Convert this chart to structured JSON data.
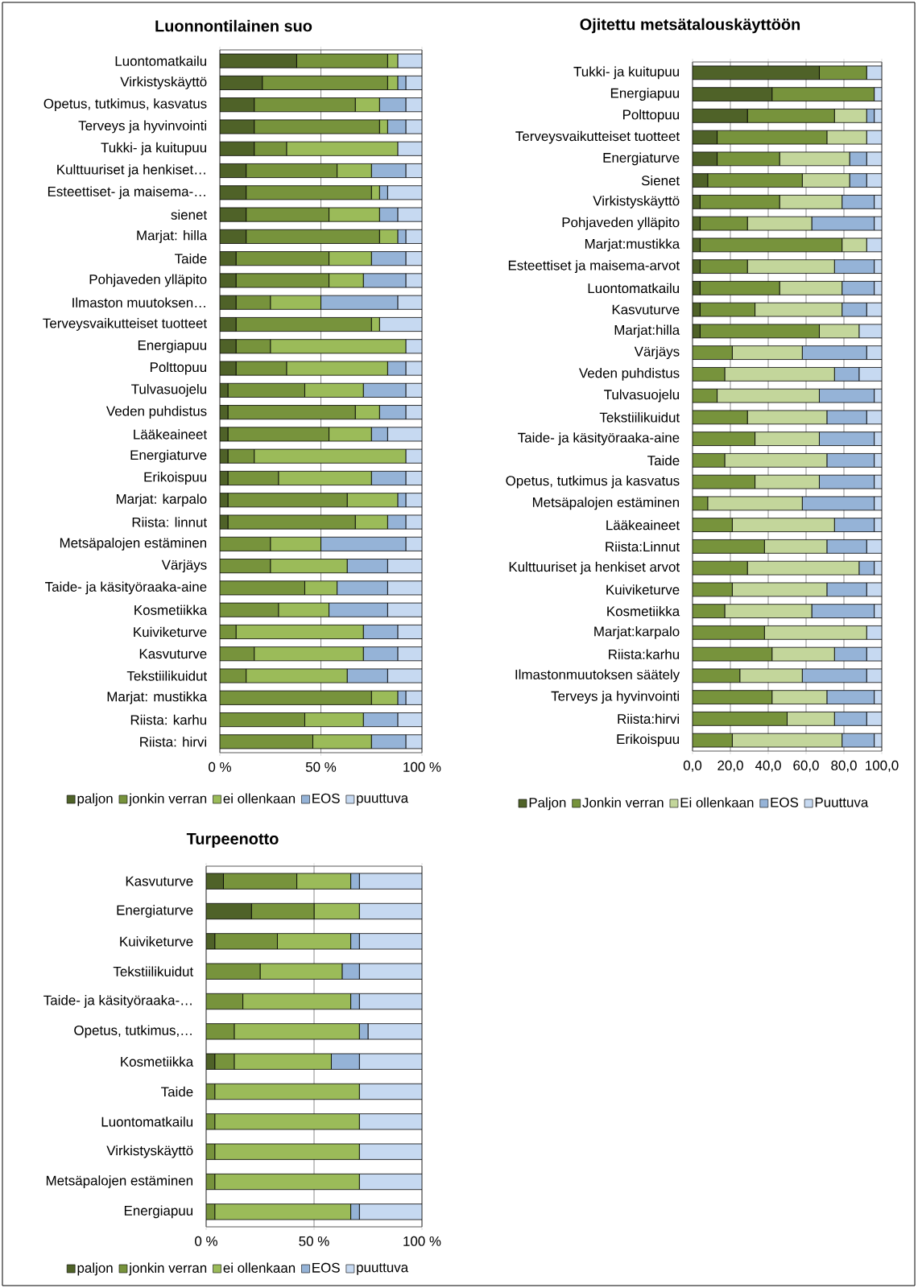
{
  "chart_data": [
    {
      "type": "bar",
      "orientation": "horizontal",
      "stacked": true,
      "title": "Luonnontilainen suo",
      "categories": [
        "Luontomatkailu",
        "Virkistyskäyttö",
        "Opetus, tutkimus, kasvatus",
        "Terveys ja hyvinvointi",
        "Tukki- ja kuitupuu",
        "Kulttuuriset ja henkiset…",
        "Esteettiset- ja maisema-…",
        "sienet",
        "Marjat: hilla",
        "Taide",
        "Pohjaveden ylläpito",
        "Ilmaston muutoksen…",
        "Terveysvaikutteiset tuotteet",
        "Energiapuu",
        "Polttopuu",
        "Tulvasuojelu",
        "Veden puhdistus",
        "Lääkeaineet",
        "Energiaturve",
        "Erikoispuu",
        "Marjat: karpalo",
        "Riista: linnut",
        "Metsäpalojen estäminen",
        "Värjäys",
        "Taide- ja käsityöraaka-aine",
        "Kosmetiikka",
        "Kuiviketurve",
        "Kasvuturve",
        "Tekstiilikuidut",
        "Marjat: mustikka",
        "Riista: karhu",
        "Riista: hirvi"
      ],
      "series": [
        {
          "name": "paljon",
          "color": "#4f6228",
          "values": [
            38,
            21,
            17,
            17,
            17,
            13,
            13,
            13,
            13,
            8,
            8,
            8,
            8,
            8,
            8,
            4,
            4,
            4,
            4,
            4,
            4,
            4,
            0,
            0,
            0,
            0,
            0,
            0,
            0,
            0,
            0,
            0
          ]
        },
        {
          "name": "jonkin verran",
          "color": "#77933c",
          "values": [
            45,
            62,
            50,
            62,
            16,
            45,
            62,
            41,
            66,
            46,
            46,
            17,
            67,
            17,
            25,
            38,
            63,
            50,
            13,
            25,
            59,
            63,
            25,
            25,
            42,
            29,
            8,
            17,
            13,
            75,
            42,
            46
          ]
        },
        {
          "name": "ei ollenkaan",
          "color": "#9bbb59",
          "values": [
            5,
            5,
            12,
            4,
            55,
            17,
            4,
            25,
            9,
            21,
            17,
            25,
            4,
            67,
            50,
            29,
            12,
            21,
            75,
            46,
            25,
            16,
            25,
            38,
            16,
            25,
            63,
            54,
            50,
            13,
            29,
            29
          ]
        },
        {
          "name": "EOS",
          "color": "#95b3d7",
          "values": [
            0,
            4,
            13,
            9,
            0,
            17,
            4,
            9,
            4,
            17,
            21,
            38,
            0,
            0,
            9,
            21,
            13,
            8,
            0,
            17,
            4,
            9,
            42,
            20,
            25,
            29,
            17,
            17,
            20,
            4,
            17,
            17
          ]
        },
        {
          "name": "puuttuva",
          "color": "#c6d9f1",
          "values": [
            12,
            8,
            8,
            8,
            12,
            8,
            17,
            12,
            8,
            8,
            8,
            12,
            21,
            8,
            8,
            8,
            8,
            17,
            8,
            8,
            8,
            8,
            8,
            17,
            17,
            17,
            12,
            12,
            17,
            8,
            12,
            8
          ]
        }
      ],
      "xlim": [
        0,
        100
      ],
      "xticks": [
        {
          "value": 0,
          "label": "0 %"
        },
        {
          "value": 50,
          "label": "50 %"
        },
        {
          "value": 100,
          "label": "100 %"
        }
      ],
      "grid": "x",
      "legend": "bottom"
    },
    {
      "type": "bar",
      "orientation": "horizontal",
      "stacked": true,
      "title": "Ojitettu metsätalouskäyttöön",
      "categories": [
        "Tukki- ja kuitupuu",
        "Energiapuu",
        "Polttopuu",
        "Terveysvaikutteiset tuotteet",
        "Energiaturve",
        "Sienet",
        "Virkistyskäyttö",
        "Pohjaveden ylläpito",
        "Marjat:mustikka",
        "Esteettiset ja maisema-arvot",
        "Luontomatkailu",
        "Kasvuturve",
        "Marjat:hilla",
        "Värjäys",
        "Veden puhdistus",
        "Tulvasuojelu",
        "Tekstiilikuidut",
        "Taide- ja käsityöraaka-aine",
        "Taide",
        "Opetus, tutkimus ja kasvatus",
        "Metsäpalojen estäminen",
        "Lääkeaineet",
        "Riista:Linnut",
        "Kulttuuriset ja henkiset arvot",
        "Kuiviketurve",
        "Kosmetiikka",
        "Marjat:karpalo",
        "Riista:karhu",
        "Ilmastonmuutoksen säätely",
        "Terveys ja hyvinvointi",
        "Riista:hirvi",
        "Erikoispuu"
      ],
      "series": [
        {
          "name": "Paljon",
          "color": "#4f6228",
          "values": [
            67,
            42,
            29,
            13,
            13,
            8,
            4,
            4,
            4,
            4,
            4,
            4,
            4,
            0,
            0,
            0,
            0,
            0,
            0,
            0,
            0,
            0,
            0,
            0,
            0,
            0,
            0,
            0,
            0,
            0,
            0,
            0
          ]
        },
        {
          "name": "Jonkin verran",
          "color": "#77933c",
          "values": [
            25,
            54,
            46,
            58,
            33,
            50,
            42,
            25,
            75,
            25,
            42,
            29,
            63,
            21,
            17,
            13,
            29,
            33,
            17,
            33,
            8,
            21,
            38,
            29,
            21,
            17,
            38,
            42,
            25,
            42,
            50,
            21
          ]
        },
        {
          "name": "Ei ollenkaan",
          "color": "#c3d69b",
          "values": [
            0,
            0,
            17,
            21,
            37,
            25,
            33,
            34,
            13,
            46,
            33,
            46,
            21,
            37,
            58,
            54,
            42,
            34,
            54,
            34,
            50,
            54,
            33,
            59,
            50,
            46,
            54,
            33,
            33,
            29,
            25,
            58
          ]
        },
        {
          "name": "EOS",
          "color": "#95b3d7",
          "values": [
            0,
            0,
            4,
            0,
            9,
            9,
            17,
            33,
            0,
            21,
            17,
            13,
            0,
            34,
            13,
            29,
            21,
            29,
            25,
            29,
            38,
            21,
            21,
            8,
            21,
            33,
            0,
            17,
            34,
            25,
            17,
            17
          ]
        },
        {
          "name": "Puuttuva",
          "color": "#c6d9f1",
          "values": [
            8,
            4,
            4,
            8,
            8,
            8,
            4,
            4,
            8,
            4,
            4,
            8,
            12,
            8,
            12,
            4,
            8,
            4,
            4,
            4,
            4,
            4,
            8,
            4,
            8,
            4,
            8,
            8,
            8,
            4,
            8,
            4
          ]
        }
      ],
      "xlim": [
        0,
        100
      ],
      "xticks": [
        {
          "value": 0,
          "label": "0,0"
        },
        {
          "value": 20,
          "label": "20,0"
        },
        {
          "value": 40,
          "label": "40,0"
        },
        {
          "value": 60,
          "label": "60,0"
        },
        {
          "value": 80,
          "label": "80,0"
        },
        {
          "value": 100,
          "label": "100,0"
        }
      ],
      "grid": "x",
      "legend": "bottom"
    },
    {
      "type": "bar",
      "orientation": "horizontal",
      "stacked": true,
      "title": "Turpeenotto",
      "categories": [
        "Kasvuturve",
        "Energiaturve",
        "Kuiviketurve",
        "Tekstiilikuidut",
        "Taide- ja käsityöraaka-…",
        "Opetus, tutkimus,…",
        "Kosmetiikka",
        "Taide",
        "Luontomatkailu",
        "Virkistyskäyttö",
        "Metsäpalojen estäminen",
        "Energiapuu"
      ],
      "series": [
        {
          "name": "paljon",
          "color": "#4f6228",
          "values": [
            8,
            21,
            4,
            0,
            0,
            0,
            4,
            0,
            0,
            0,
            0,
            0
          ]
        },
        {
          "name": "jonkin verran",
          "color": "#77933c",
          "values": [
            34,
            29,
            29,
            25,
            17,
            13,
            9,
            4,
            4,
            4,
            4,
            4
          ]
        },
        {
          "name": "ei ollenkaan",
          "color": "#9bbb59",
          "values": [
            25,
            21,
            34,
            38,
            50,
            58,
            45,
            67,
            67,
            67,
            67,
            63
          ]
        },
        {
          "name": "EOS",
          "color": "#95b3d7",
          "values": [
            4,
            0,
            4,
            8,
            4,
            4,
            13,
            0,
            0,
            0,
            0,
            4
          ]
        },
        {
          "name": "puuttuva",
          "color": "#c6d9f1",
          "values": [
            29,
            29,
            29,
            29,
            29,
            25,
            29,
            29,
            29,
            29,
            29,
            29
          ]
        }
      ],
      "xlim": [
        0,
        100
      ],
      "xticks": [
        {
          "value": 0,
          "label": "0 %"
        },
        {
          "value": 50,
          "label": "50 %"
        },
        {
          "value": 100,
          "label": "100 %"
        }
      ],
      "grid": "x",
      "legend": "bottom"
    }
  ]
}
